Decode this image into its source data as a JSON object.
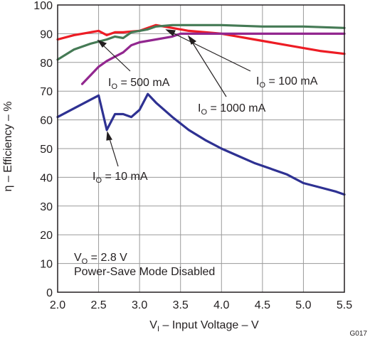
{
  "chart_data": {
    "type": "line",
    "title": "",
    "xlabel": {
      "main": "V",
      "sub": "I",
      "rest": " – Input Voltage – V"
    },
    "ylabel": "η – Efficiency – %",
    "xlim": [
      2.0,
      5.5
    ],
    "ylim": [
      0,
      100
    ],
    "xticks": [
      2.0,
      2.5,
      3.0,
      3.5,
      4.0,
      4.5,
      5.0,
      5.5
    ],
    "xtick_labels": [
      "2.0",
      "2.5",
      "3.0",
      "3.5",
      "4.0",
      "4.5",
      "5.0",
      "5.5"
    ],
    "yticks": [
      0,
      10,
      20,
      30,
      40,
      50,
      60,
      70,
      80,
      90,
      100
    ],
    "ytick_labels": [
      "0",
      "10",
      "20",
      "30",
      "40",
      "50",
      "60",
      "70",
      "80",
      "90",
      "100"
    ],
    "grid": true,
    "figure_id": "G017",
    "conditions": {
      "line1": {
        "main": "V",
        "sub": "O",
        "rest": " = 2.8 V"
      },
      "line2": "Power-Save Mode Disabled"
    },
    "series": [
      {
        "label": {
          "main": "I",
          "sub": "O",
          "rest": " = 10 mA"
        },
        "color": "#2e3192",
        "x": [
          2.0,
          2.2,
          2.4,
          2.5,
          2.6,
          2.7,
          2.8,
          2.9,
          3.0,
          3.1,
          3.2,
          3.4,
          3.6,
          3.8,
          4.0,
          4.2,
          4.4,
          4.6,
          4.8,
          5.0,
          5.2,
          5.4,
          5.5
        ],
        "y": [
          61,
          64,
          67,
          68.5,
          56.5,
          62,
          62,
          61,
          63.5,
          69,
          66,
          61,
          56.5,
          53,
          50,
          47.5,
          45,
          43,
          41,
          38,
          36.5,
          35,
          34
        ]
      },
      {
        "label": {
          "main": "I",
          "sub": "O",
          "rest": " = 100 mA"
        },
        "color": "#ed1c24",
        "x": [
          2.0,
          2.2,
          2.4,
          2.5,
          2.6,
          2.7,
          2.8,
          3.0,
          3.1,
          3.2,
          3.4,
          3.6,
          3.8,
          4.0,
          4.2,
          4.4,
          4.6,
          4.8,
          5.0,
          5.2,
          5.5
        ],
        "y": [
          88,
          89.5,
          90.5,
          91,
          89.5,
          90.5,
          90.5,
          91,
          92,
          93,
          92,
          91,
          90.5,
          90,
          89,
          88,
          87,
          86,
          85,
          84,
          83
        ]
      },
      {
        "label": {
          "main": "I",
          "sub": "O",
          "rest": " = 500 mA"
        },
        "color": "#457a55",
        "x": [
          2.0,
          2.2,
          2.4,
          2.6,
          2.7,
          2.8,
          2.9,
          3.0,
          3.1,
          3.2,
          3.4,
          3.6,
          3.8,
          4.0,
          4.5,
          5.0,
          5.5
        ],
        "y": [
          81,
          84.5,
          86.5,
          88,
          89,
          88.5,
          90.5,
          91,
          91.5,
          92.5,
          93,
          93,
          93,
          93,
          92.5,
          92.5,
          92
        ]
      },
      {
        "label": {
          "main": "I",
          "sub": "O",
          "rest": " = 1000 mA"
        },
        "color": "#92278f",
        "x": [
          2.3,
          2.4,
          2.5,
          2.6,
          2.7,
          2.8,
          2.9,
          3.0,
          3.2,
          3.4,
          3.5,
          3.8,
          4.0,
          4.5,
          5.0,
          5.5
        ],
        "y": [
          72.5,
          75.5,
          78.5,
          80.5,
          82,
          83.5,
          86,
          87,
          88,
          89,
          90,
          90,
          90,
          90,
          90,
          90
        ]
      }
    ]
  }
}
